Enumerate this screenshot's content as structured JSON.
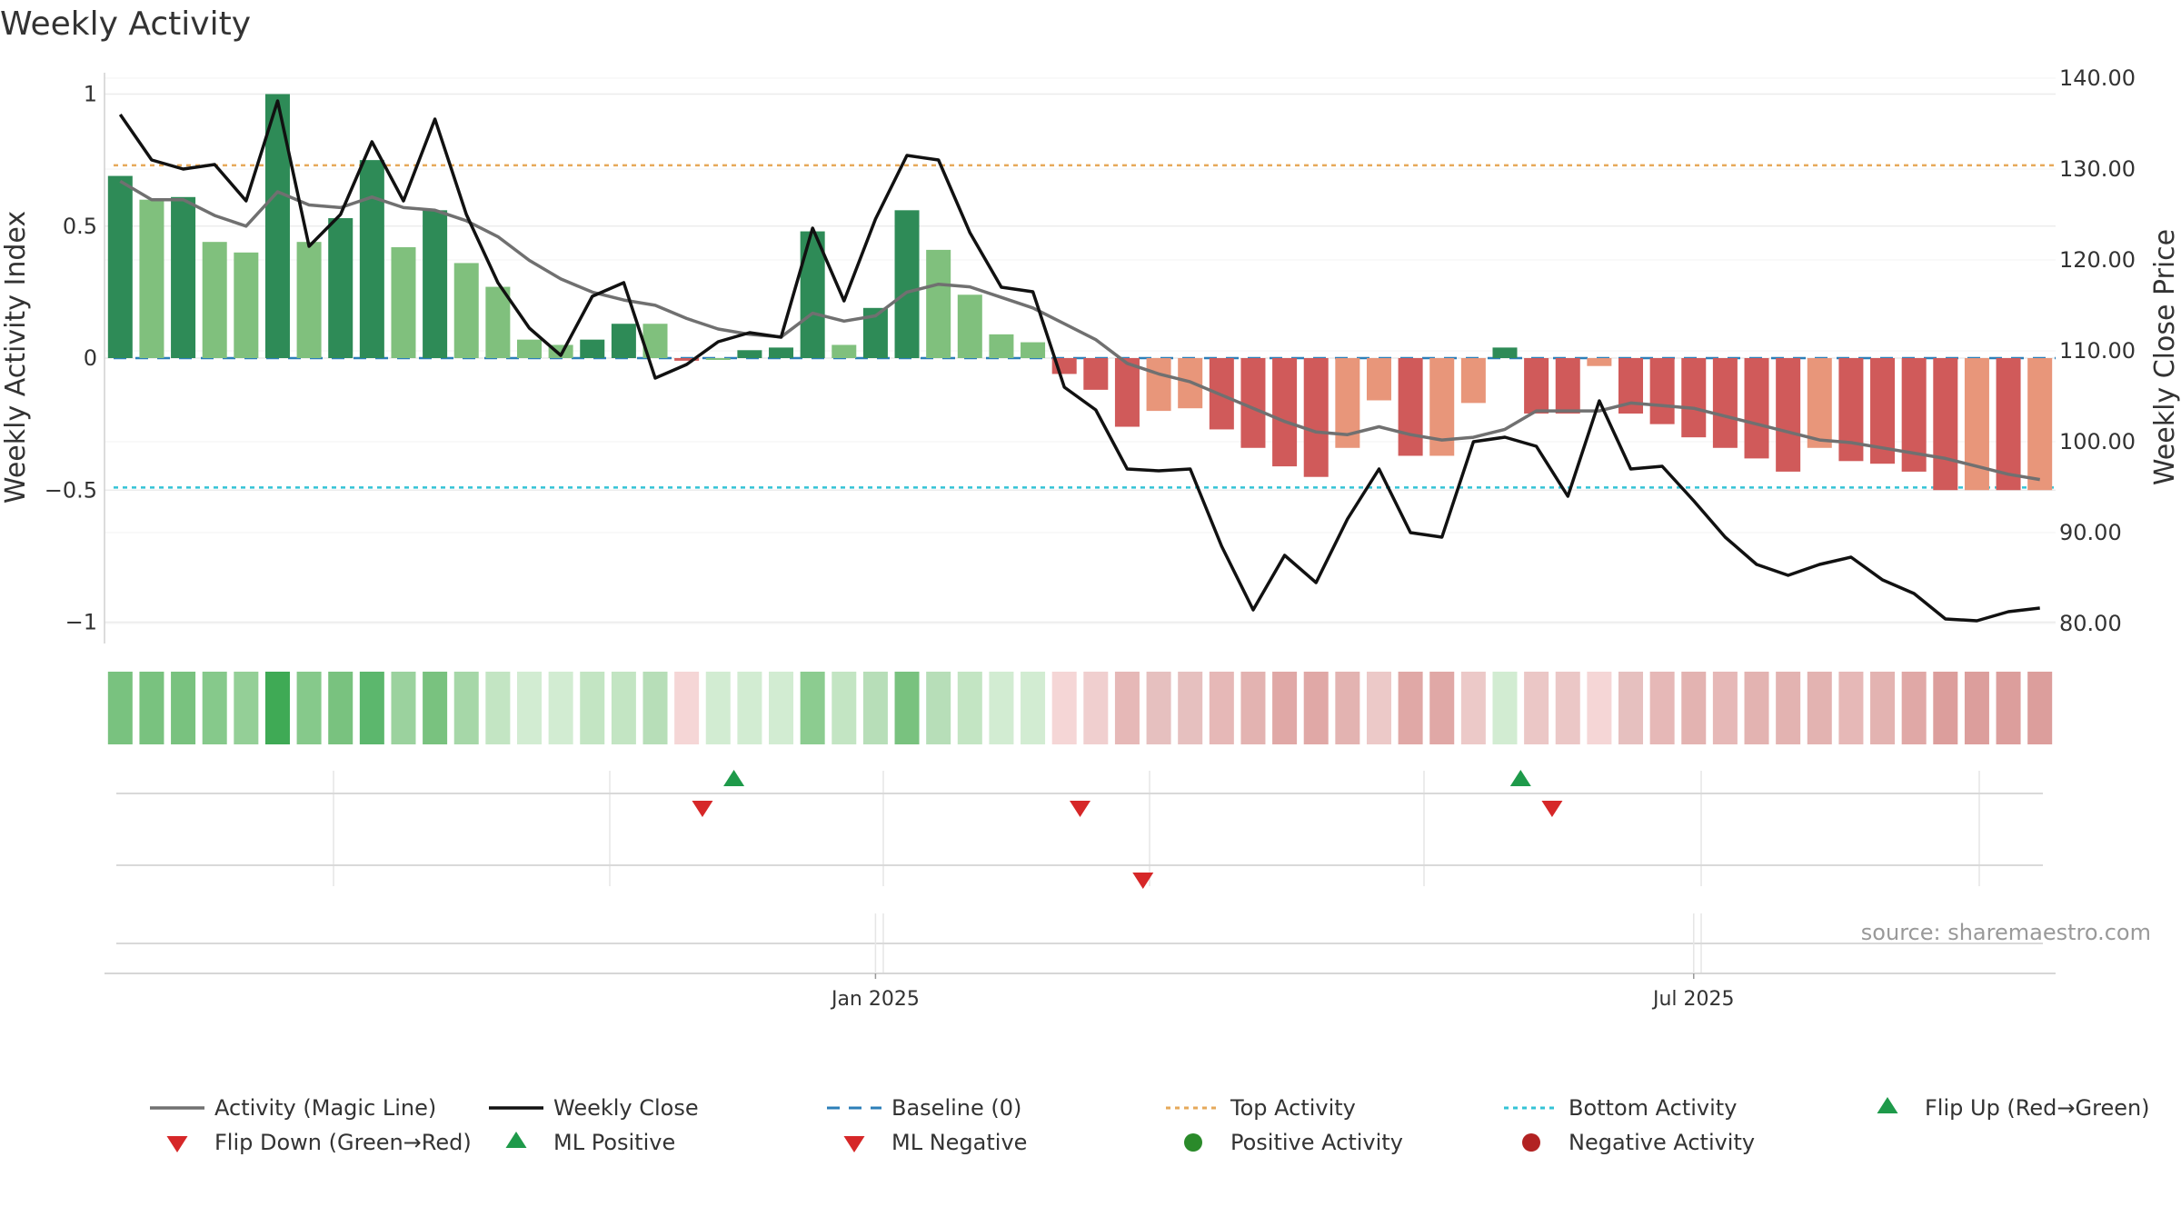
{
  "chart_data": {
    "type": "bar",
    "title": "Weekly Activity",
    "ylabel": "Weekly Activity Index",
    "y2label": "Weekly Close Price",
    "ylim": [
      -1.1,
      1.1
    ],
    "y2lim": [
      77,
      140
    ],
    "yticks": [
      {
        "value": 1,
        "label": "1"
      },
      {
        "value": 0.5,
        "label": "0.5"
      },
      {
        "value": 0,
        "label": "0"
      },
      {
        "value": -0.5,
        "label": "−0.5"
      },
      {
        "value": -1,
        "label": "−1"
      }
    ],
    "y2ticks": [
      {
        "value": 140,
        "label": "140.00"
      },
      {
        "value": 130,
        "label": "130.00"
      },
      {
        "value": 120,
        "label": "120.00"
      },
      {
        "value": 110,
        "label": "110.00"
      },
      {
        "value": 100,
        "label": "100.00"
      },
      {
        "value": 90,
        "label": "90.00"
      },
      {
        "value": 80,
        "label": "80.00"
      }
    ],
    "xticks": [
      {
        "index": 24.5,
        "label": "Jan 2025"
      },
      {
        "index": 50.5,
        "label": "Jul 2025"
      }
    ],
    "reference_lines": {
      "baseline": 0,
      "top_activity": 0.73,
      "bottom_activity": -0.49
    },
    "activity": [
      0.69,
      0.6,
      0.61,
      0.44,
      0.4,
      1.0,
      0.44,
      0.53,
      0.75,
      0.42,
      0.56,
      0.36,
      0.27,
      0.07,
      0.05,
      0.07,
      0.13,
      0.13,
      -0.01,
      0.0,
      0.03,
      0.04,
      0.48,
      0.05,
      0.19,
      0.56,
      0.41,
      0.24,
      0.09,
      0.06,
      -0.06,
      -0.12,
      -0.26,
      -0.2,
      -0.19,
      -0.27,
      -0.34,
      -0.41,
      -0.45,
      -0.34,
      -0.16,
      -0.37,
      -0.37,
      -0.17,
      0.04,
      -0.21,
      -0.21,
      -0.03,
      -0.21,
      -0.25,
      -0.3,
      -0.34,
      -0.38,
      -0.43,
      -0.34,
      -0.39,
      -0.4,
      -0.43,
      -0.5,
      -0.5,
      -0.5,
      -0.5
    ],
    "bar_colors": [
      "#2e8b57",
      "#80c07d",
      "#2e8b57",
      "#80c07d",
      "#80c07d",
      "#2e8b57",
      "#80c07d",
      "#2e8b57",
      "#2e8b57",
      "#80c07d",
      "#2e8b57",
      "#80c07d",
      "#80c07d",
      "#80c07d",
      "#80c07d",
      "#2e8b57",
      "#2e8b57",
      "#80c07d",
      "#d05a5a",
      "#80c07d",
      "#2e8b57",
      "#2e8b57",
      "#2e8b57",
      "#80c07d",
      "#2e8b57",
      "#2e8b57",
      "#80c07d",
      "#80c07d",
      "#80c07d",
      "#80c07d",
      "#d05a5a",
      "#d05a5a",
      "#d05a5a",
      "#e8967a",
      "#e8967a",
      "#d05a5a",
      "#d05a5a",
      "#d05a5a",
      "#d05a5a",
      "#e8967a",
      "#e8967a",
      "#d05a5a",
      "#e8967a",
      "#e8967a",
      "#2e8b57",
      "#d05a5a",
      "#d05a5a",
      "#e8967a",
      "#d05a5a",
      "#d05a5a",
      "#d05a5a",
      "#d05a5a",
      "#d05a5a",
      "#d05a5a",
      "#e8967a",
      "#d05a5a",
      "#d05a5a",
      "#d05a5a",
      "#d05a5a",
      "#e8967a",
      "#d05a5a",
      "#e8967a"
    ],
    "heat_colors": [
      "#79c27f",
      "#79c27f",
      "#79c27f",
      "#86c98b",
      "#94cf97",
      "#3faa55",
      "#86c98b",
      "#79c27f",
      "#5cb76d",
      "#9bd29e",
      "#79c27f",
      "#a6d7a8",
      "#c3e5c3",
      "#d2ecd2",
      "#d2ecd2",
      "#c3e5c3",
      "#c3e5c3",
      "#b7deb8",
      "#f5d6d6",
      "#d2ecd2",
      "#d2ecd2",
      "#d2ecd2",
      "#8ccc90",
      "#c3e5c3",
      "#b7deb8",
      "#79c27f",
      "#b7deb8",
      "#c3e5c3",
      "#d2ecd2",
      "#d2ecd2",
      "#f5d6d6",
      "#f0cfcf",
      "#e6b8b7",
      "#e6c0bf",
      "#e6c0bf",
      "#e6b8b7",
      "#e3b3b1",
      "#e0a8a6",
      "#e0a8a6",
      "#e3b3b1",
      "#ecc9c8",
      "#e0a8a6",
      "#e0a8a6",
      "#ecc9c8",
      "#d2ecd2",
      "#ebc7c6",
      "#ebc7c6",
      "#f5d6d6",
      "#e6c0bf",
      "#e6b8b7",
      "#e3b3b1",
      "#e6b8b7",
      "#e3b3b1",
      "#e3b3b1",
      "#e3b3b1",
      "#e6b8b7",
      "#e3b3b1",
      "#e0a8a6",
      "#dc9e9c",
      "#dc9e9c",
      "#dc9e9c",
      "#dc9e9c"
    ],
    "magic_line": [
      0.67,
      0.6,
      0.6,
      0.54,
      0.5,
      0.63,
      0.58,
      0.57,
      0.61,
      0.57,
      0.56,
      0.52,
      0.46,
      0.37,
      0.3,
      0.25,
      0.22,
      0.2,
      0.15,
      0.11,
      0.09,
      0.08,
      0.17,
      0.14,
      0.16,
      0.25,
      0.28,
      0.27,
      0.23,
      0.19,
      0.13,
      0.07,
      -0.02,
      -0.06,
      -0.09,
      -0.14,
      -0.19,
      -0.24,
      -0.28,
      -0.29,
      -0.26,
      -0.29,
      -0.31,
      -0.3,
      -0.27,
      -0.2,
      -0.2,
      -0.2,
      -0.17,
      -0.18,
      -0.19,
      -0.22,
      -0.25,
      -0.28,
      -0.31,
      -0.32,
      -0.34,
      -0.36,
      -0.38,
      -0.41,
      -0.44,
      -0.46
    ],
    "weekly_close": [
      136,
      131,
      130,
      130.5,
      126.5,
      137.5,
      121.5,
      125,
      133,
      126.5,
      135.5,
      125,
      117.5,
      112.5,
      109.5,
      116,
      117.5,
      107,
      108.5,
      111,
      112,
      111.5,
      123.5,
      115.5,
      124.5,
      131.5,
      131,
      123,
      117,
      116.5,
      106,
      103.5,
      97,
      96.8,
      97,
      88.5,
      81.5,
      87.5,
      84.5,
      91.5,
      97,
      90,
      89.5,
      100,
      100.5,
      99.5,
      94,
      104.5,
      97,
      97.3,
      93.5,
      89.5,
      86.5,
      85.3,
      86.5,
      87.3,
      84.8,
      83.3,
      80.5,
      80.3,
      81.3,
      81.7
    ],
    "flip_events": {
      "row1_up": [
        19.5,
        44.5
      ],
      "row1_down": [
        18.5,
        30.5,
        45.5
      ],
      "row2_down": [
        32.5
      ]
    },
    "legend": [
      {
        "label": "Activity (Magic Line)",
        "symbol": "line",
        "color": "#707070"
      },
      {
        "label": "Weekly Close",
        "symbol": "line",
        "color": "#111111"
      },
      {
        "label": "Baseline (0)",
        "symbol": "dash",
        "color": "#2c7fb8"
      },
      {
        "label": "Top Activity",
        "symbol": "dot",
        "color": "#e6a95a"
      },
      {
        "label": "Bottom Activity",
        "symbol": "dot",
        "color": "#33c3d6"
      },
      {
        "label": "Flip Up (Red→Green)",
        "symbol": "tri-up",
        "color": "#1e9a4a"
      },
      {
        "label": "Flip Down (Green→Red)",
        "symbol": "tri-down",
        "color": "#d62728"
      },
      {
        "label": "ML Positive",
        "symbol": "tri-up",
        "color": "#1e9a4a"
      },
      {
        "label": "ML Negative",
        "symbol": "tri-down",
        "color": "#d62728"
      },
      {
        "label": "Positive Activity",
        "symbol": "circle",
        "color": "#2a8a2a"
      },
      {
        "label": "Negative Activity",
        "symbol": "circle",
        "color": "#b22222"
      }
    ]
  },
  "source": "source: sharemaestro.com"
}
